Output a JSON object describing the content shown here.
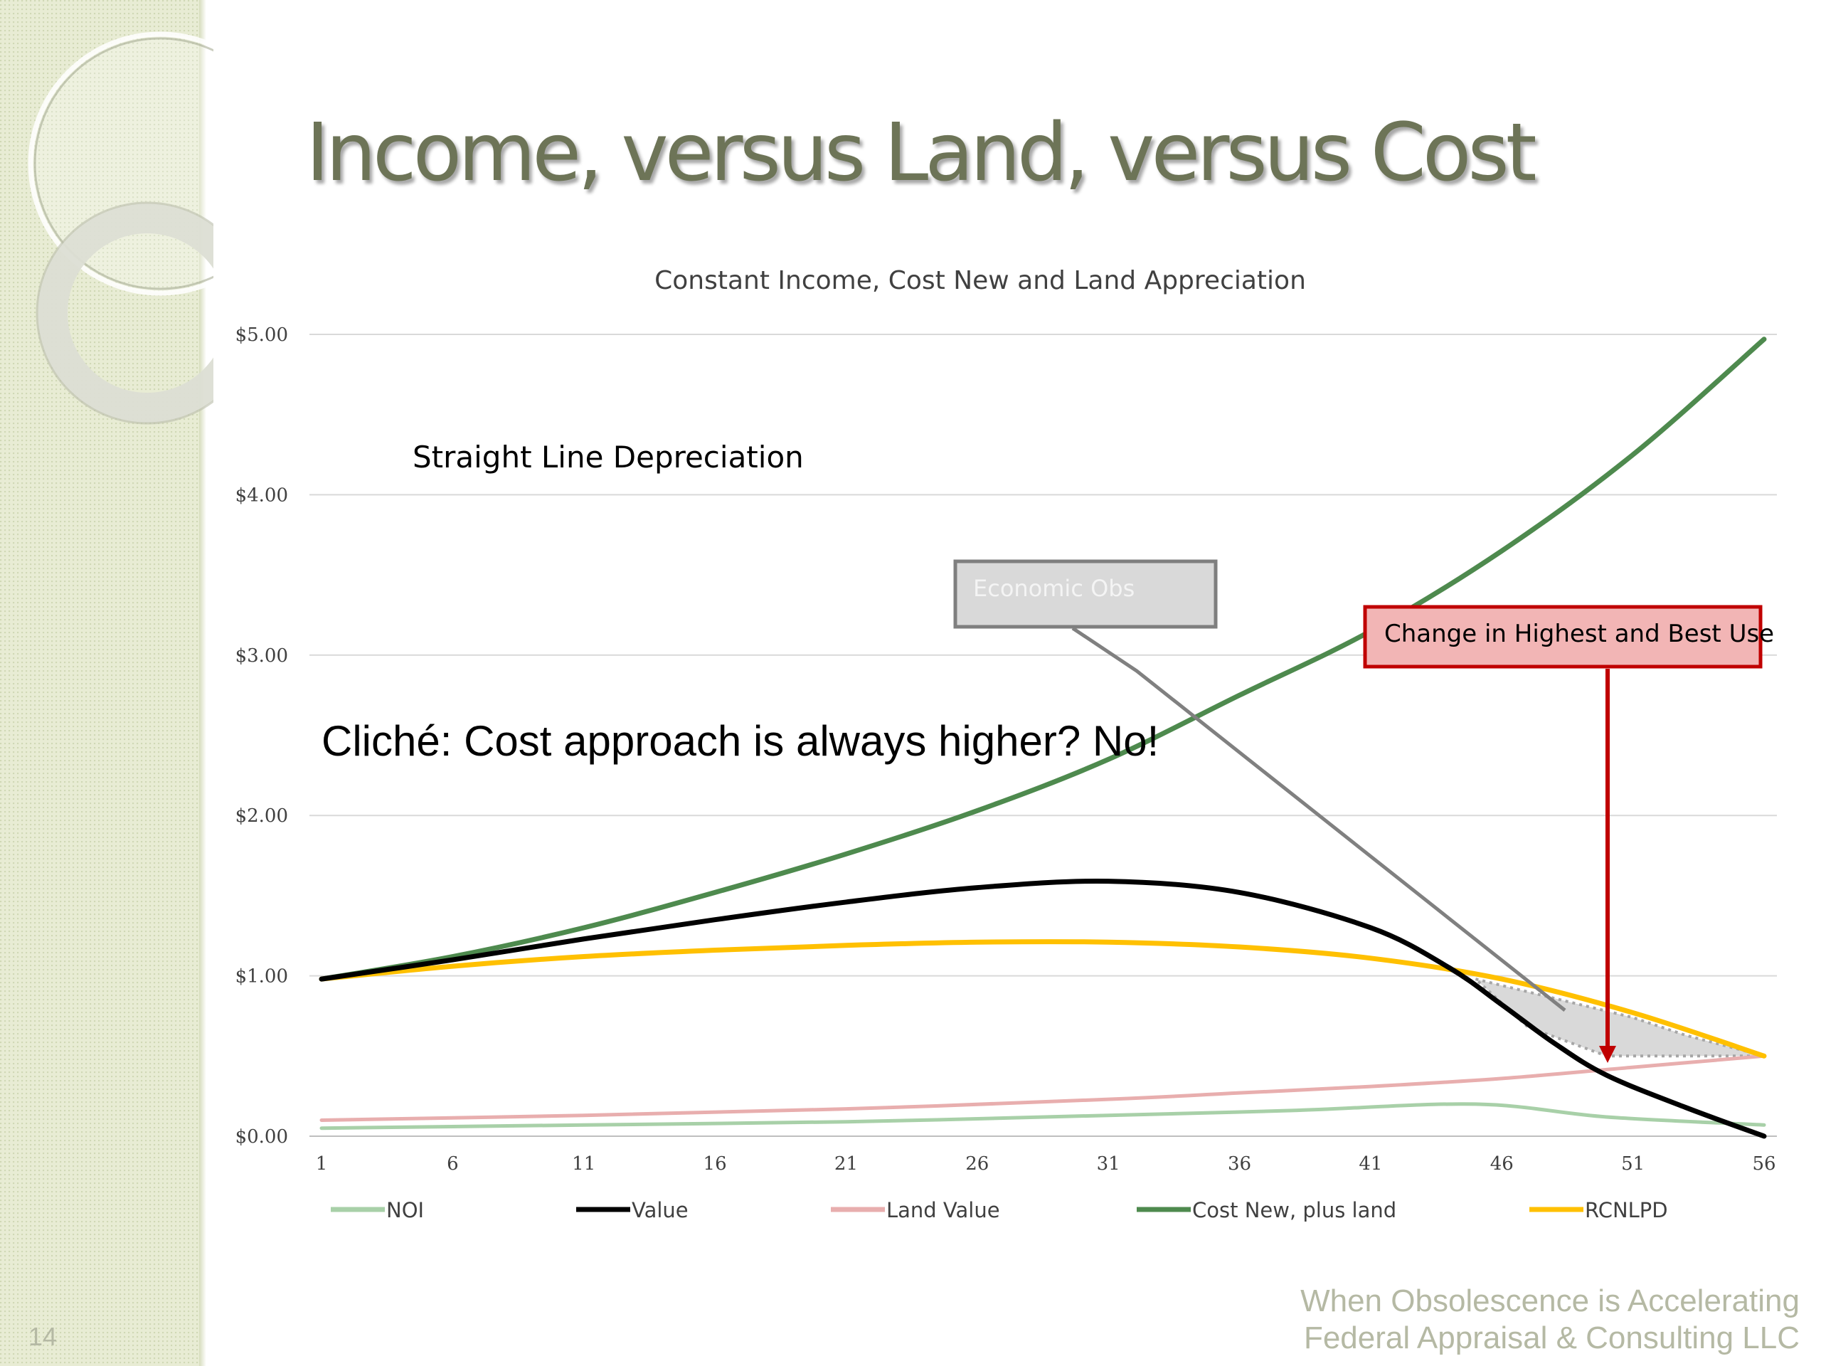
{
  "slide": {
    "title": "Income, versus Land, versus Cost",
    "page_number": "14",
    "footer_line1": "When Obsolescence is Accelerating",
    "footer_line2": "Federal Appraisal & Consulting LLC"
  },
  "annotations": {
    "straight_line": "Straight Line Depreciation",
    "cliche": "Cliché: Cost approach is always higher?  No!",
    "economic_obs": "Economic Obs",
    "hbu_change": "Change in Highest and Best Use"
  },
  "colors": {
    "noi": "#a8d0a8",
    "value": "#000000",
    "land_value": "#e8aeae",
    "cost_new": "#4e8a4e",
    "rcnlpd": "#ffc000",
    "hbu_box_fill": "#f2b5b5",
    "hbu_box_border": "#c00000",
    "obs_box_fill": "#d9d9d9",
    "obs_box_border": "#7f7f7f"
  },
  "chart_data": {
    "type": "line",
    "title": "Constant Income, Cost New and Land Appreciation",
    "xlabel": "",
    "ylabel": "",
    "ylim": [
      0,
      5
    ],
    "y_ticks": [
      "$0.00",
      "$1.00",
      "$2.00",
      "$3.00",
      "$4.00",
      "$5.00"
    ],
    "x_ticks": [
      "1",
      "6",
      "11",
      "16",
      "21",
      "26",
      "31",
      "36",
      "41",
      "46",
      "51",
      "56"
    ],
    "grid": true,
    "legend_position": "bottom",
    "series": [
      {
        "name": "NOI",
        "key": "noi",
        "points": [
          [
            1,
            0.05
          ],
          [
            11,
            0.07
          ],
          [
            21,
            0.09
          ],
          [
            31,
            0.13
          ],
          [
            38,
            0.16
          ],
          [
            45,
            0.2
          ],
          [
            50,
            0.12
          ],
          [
            56,
            0.07
          ]
        ]
      },
      {
        "name": "Value",
        "key": "value",
        "points": [
          [
            1,
            0.98
          ],
          [
            6,
            1.1
          ],
          [
            11,
            1.23
          ],
          [
            16,
            1.35
          ],
          [
            21,
            1.46
          ],
          [
            26,
            1.55
          ],
          [
            31,
            1.59
          ],
          [
            36,
            1.52
          ],
          [
            41,
            1.3
          ],
          [
            44,
            1.05
          ],
          [
            46,
            0.82
          ],
          [
            48,
            0.58
          ],
          [
            50,
            0.38
          ],
          [
            53,
            0.18
          ],
          [
            56,
            0.0
          ]
        ]
      },
      {
        "name": "Land Value",
        "key": "land_value",
        "points": [
          [
            1,
            0.1
          ],
          [
            11,
            0.13
          ],
          [
            21,
            0.17
          ],
          [
            31,
            0.23
          ],
          [
            36,
            0.27
          ],
          [
            41,
            0.31
          ],
          [
            46,
            0.36
          ],
          [
            51,
            0.43
          ],
          [
            56,
            0.5
          ]
        ]
      },
      {
        "name": "Cost New, plus land",
        "key": "cost_new",
        "points": [
          [
            1,
            0.98
          ],
          [
            6,
            1.12
          ],
          [
            11,
            1.3
          ],
          [
            16,
            1.52
          ],
          [
            21,
            1.76
          ],
          [
            26,
            2.03
          ],
          [
            31,
            2.35
          ],
          [
            36,
            2.75
          ],
          [
            41,
            3.15
          ],
          [
            46,
            3.65
          ],
          [
            51,
            4.25
          ],
          [
            56,
            4.97
          ]
        ]
      },
      {
        "name": "RCNLPD",
        "key": "rcnlpd",
        "points": [
          [
            1,
            0.98
          ],
          [
            6,
            1.06
          ],
          [
            11,
            1.12
          ],
          [
            16,
            1.16
          ],
          [
            21,
            1.19
          ],
          [
            26,
            1.21
          ],
          [
            31,
            1.21
          ],
          [
            36,
            1.18
          ],
          [
            41,
            1.11
          ],
          [
            46,
            0.98
          ],
          [
            51,
            0.77
          ],
          [
            56,
            0.5
          ]
        ]
      }
    ],
    "shaded_gap": {
      "upper": [
        [
          45,
          0.98
        ],
        [
          48,
          0.86
        ],
        [
          51,
          0.74
        ],
        [
          53,
          0.63
        ],
        [
          56,
          0.5
        ]
      ],
      "lower": [
        [
          56,
          0.5
        ],
        [
          53,
          0.5
        ],
        [
          50,
          0.5
        ],
        [
          47,
          0.68
        ],
        [
          45,
          0.98
        ]
      ]
    }
  }
}
